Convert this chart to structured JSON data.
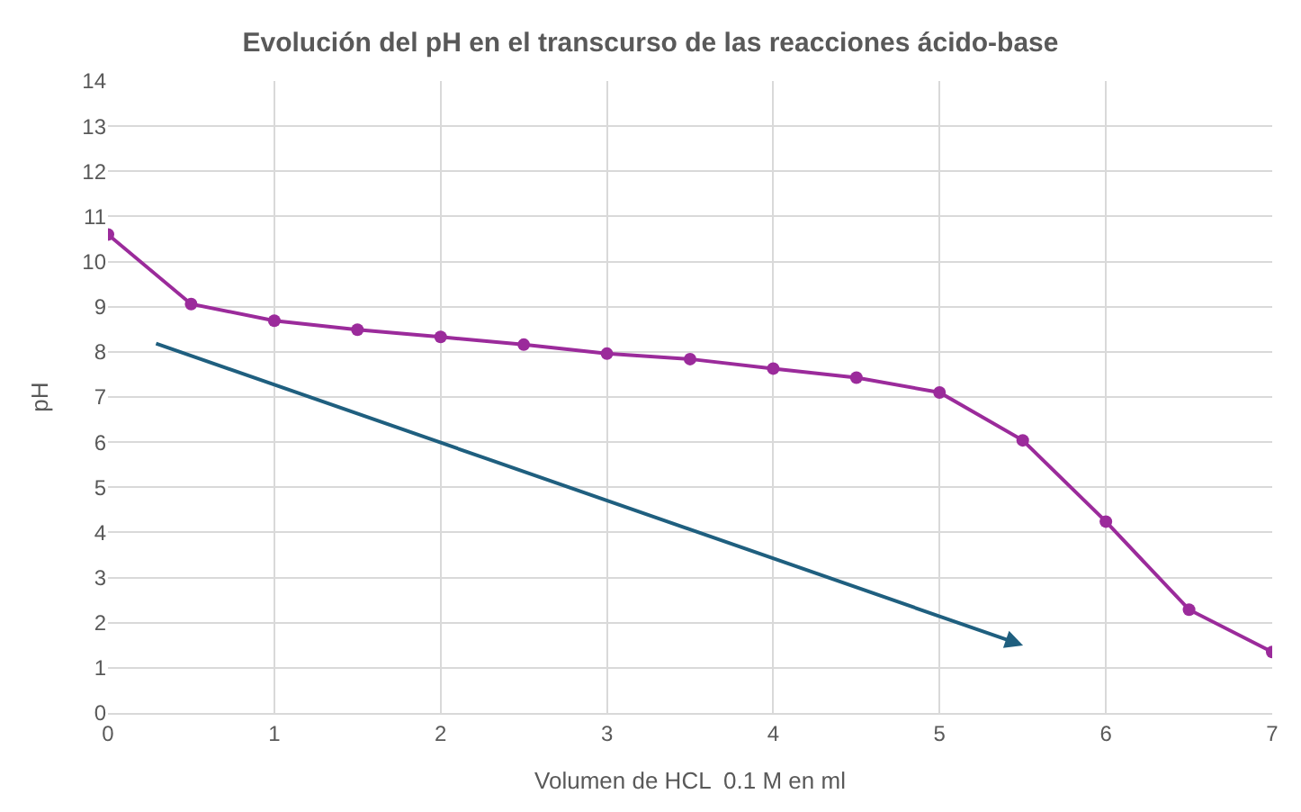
{
  "chart_data": {
    "type": "line",
    "title": "Evolución del pH en el transcurso de las reacciones ácido-base",
    "xlabel": "Volumen de HCL  0.1 M en ml",
    "ylabel": "pH",
    "xlim": [
      0,
      7
    ],
    "xticks": [
      0,
      1,
      2,
      3,
      4,
      5,
      6,
      7
    ],
    "ylim": [
      0,
      14
    ],
    "yticks": [
      0,
      1,
      2,
      3,
      4,
      5,
      6,
      7,
      8,
      9,
      10,
      11,
      12,
      13,
      14
    ],
    "grid": true,
    "series": [
      {
        "color": "#9b2b9b",
        "marker": "circle",
        "x": [
          0,
          0.5,
          1,
          1.5,
          2,
          2.5,
          3,
          3.5,
          4,
          4.5,
          5,
          5.5,
          6,
          6.5,
          7
        ],
        "values": [
          10.6,
          9.06,
          8.69,
          8.49,
          8.33,
          8.16,
          7.96,
          7.84,
          7.63,
          7.43,
          7.1,
          6.04,
          4.24,
          2.29,
          1.35
        ]
      }
    ]
  }
}
